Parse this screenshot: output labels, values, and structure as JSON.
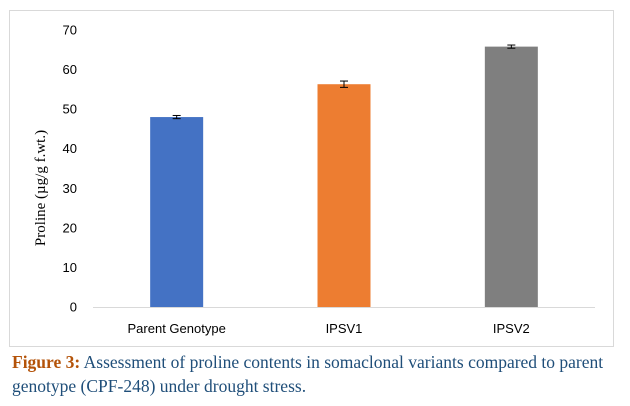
{
  "chart_data": {
    "type": "bar",
    "categories": [
      "Parent Genotype",
      "IPSV1",
      "IPSV2"
    ],
    "values": [
      48,
      56.3,
      65.8
    ],
    "errors": [
      0.4,
      0.8,
      0.4
    ],
    "colors": [
      "#4472c4",
      "#ed7d31",
      "#7f7f7f"
    ],
    "ylabel": "Proline (µg/g f.wt.)",
    "xlabel": "",
    "ylim": [
      0,
      70
    ],
    "yticks": [
      0,
      10,
      20,
      30,
      40,
      50,
      60,
      70
    ],
    "grid": false,
    "legend": "none"
  },
  "caption": {
    "label": "Figure 3:",
    "text": " Assessment of proline contents in somaclonal variants compared to parent genotype (CPF-248) under drought stress."
  },
  "colors": {
    "caption_text": "#1f4e79",
    "caption_label": "#b45309"
  }
}
